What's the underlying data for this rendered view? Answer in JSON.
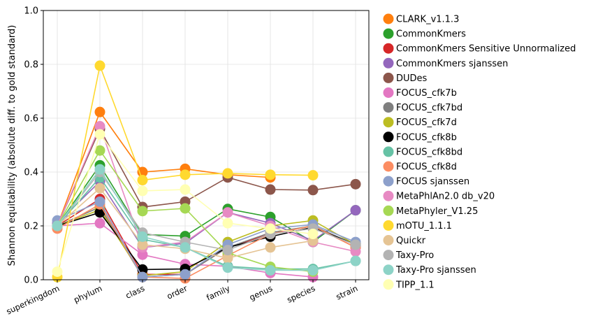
{
  "chart_data": {
    "type": "line",
    "title": "",
    "xlabel": "",
    "ylabel": "Shannon equitability (absolute diff. to gold standard)",
    "ylim": [
      0,
      1.0
    ],
    "yticks": [
      "0.0",
      "0.2",
      "0.4",
      "0.6",
      "0.8",
      "1.0"
    ],
    "grid": true,
    "legend_position": "outside-right",
    "categories": [
      "superkingdom",
      "phylum",
      "class",
      "order",
      "family",
      "genus",
      "species",
      "strain"
    ],
    "series": [
      {
        "name": "CLARK_v1.1.3",
        "color": "#ff7f0e",
        "values": [
          0.2,
          0.623,
          0.4,
          0.412,
          0.39,
          0.38,
          null,
          null
        ]
      },
      {
        "name": "CommonKmers",
        "color": "#2ca02c",
        "values": [
          0.2,
          0.425,
          0.168,
          0.162,
          0.263,
          0.233,
          0.14,
          0.258
        ]
      },
      {
        "name": "CommonKmers Sensitive Unnormalized",
        "color": "#d62728",
        "values": [
          0.2,
          0.3,
          0.02,
          0.02,
          0.12,
          0.17,
          0.2,
          0.12
        ]
      },
      {
        "name": "CommonKmers sjanssen",
        "color": "#9467bd",
        "values": [
          0.21,
          0.365,
          0.12,
          0.135,
          0.25,
          0.21,
          0.145,
          0.258
        ]
      },
      {
        "name": "DUDes",
        "color": "#8c564b",
        "values": [
          0.2,
          0.56,
          0.27,
          0.29,
          0.38,
          0.335,
          0.333,
          0.355
        ]
      },
      {
        "name": "FOCUS_cfk7b",
        "color": "#e377c2",
        "values": [
          0.2,
          0.21,
          0.093,
          0.058,
          0.05,
          0.025,
          0.01,
          null
        ]
      },
      {
        "name": "FOCUS_cfk7bd",
        "color": "#7f7f7f",
        "values": [
          0.2,
          0.27,
          0.01,
          0.02,
          0.12,
          0.175,
          0.2,
          0.13
        ]
      },
      {
        "name": "FOCUS_cfk7d",
        "color": "#bcbd22",
        "values": [
          0.2,
          0.26,
          0.015,
          0.03,
          0.14,
          0.2,
          0.22,
          0.13
        ]
      },
      {
        "name": "FOCUS_cfk8b",
        "color": "#000000",
        "values": [
          0.2,
          0.25,
          0.038,
          0.04,
          0.12,
          0.16,
          0.195,
          0.13
        ]
      },
      {
        "name": "FOCUS_cfk8bd",
        "color": "#66c2a5",
        "values": [
          0.2,
          0.38,
          0.15,
          0.12,
          0.05,
          0.04,
          0.04,
          0.07
        ]
      },
      {
        "name": "FOCUS_cfk8d",
        "color": "#fc8d62",
        "values": [
          0.19,
          0.28,
          0.01,
          0.005,
          0.09,
          0.17,
          0.2,
          0.12
        ]
      },
      {
        "name": "FOCUS sjanssen",
        "color": "#8da0cb",
        "values": [
          0.22,
          0.29,
          0.01,
          0.02,
          0.13,
          0.19,
          0.205,
          0.14
        ]
      },
      {
        "name": "MetaPhlAn2.0 db_v20",
        "color": "#e78ac3",
        "values": [
          0.2,
          0.57,
          0.12,
          0.14,
          0.25,
          0.2,
          0.14,
          0.105
        ]
      },
      {
        "name": "MetaPhyler_V1.25",
        "color": "#a6d854",
        "values": [
          0.2,
          0.48,
          0.255,
          0.265,
          0.1,
          0.048,
          0.03,
          null
        ]
      },
      {
        "name": "mOTU_1.1.1",
        "color": "#ffd92f",
        "values": [
          0.01,
          0.795,
          0.37,
          0.39,
          0.395,
          0.39,
          0.388,
          null
        ]
      },
      {
        "name": "Quickr",
        "color": "#e5c494",
        "values": [
          0.2,
          0.34,
          0.13,
          0.115,
          0.08,
          0.12,
          0.145,
          null
        ]
      },
      {
        "name": "Taxy-Pro",
        "color": "#b3b3b3",
        "values": [
          0.2,
          0.4,
          0.175,
          0.14,
          0.11,
          0.17,
          0.19,
          0.13
        ]
      },
      {
        "name": "Taxy-Pro sjanssen",
        "color": "#8dd3c7",
        "values": [
          0.2,
          0.41,
          0.16,
          0.12,
          0.045,
          0.035,
          0.035,
          0.07
        ]
      },
      {
        "name": "TIPP_1.1",
        "color": "#ffffb3",
        "values": [
          0.03,
          0.54,
          0.33,
          0.335,
          0.21,
          0.19,
          0.17,
          null
        ]
      }
    ]
  }
}
